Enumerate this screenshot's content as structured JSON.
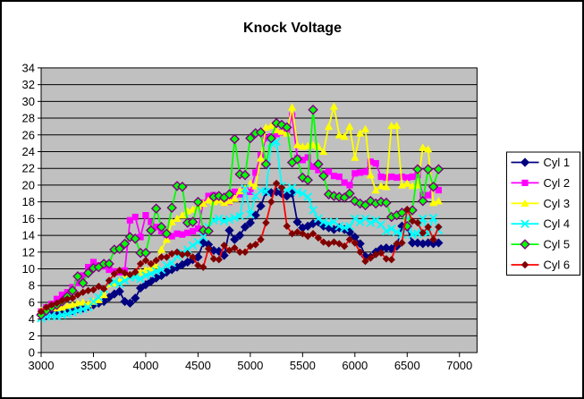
{
  "window": {
    "background": "#FFFFFF",
    "border_color": "#000000"
  },
  "chart_data": {
    "type": "line",
    "title": "Knock Voltage",
    "xlabel": "",
    "ylabel": "",
    "grid": "horizontal",
    "plot_background": "#C0C0C0",
    "gridline_color": "#000000",
    "legend_position": "right",
    "x_axis": {
      "min": 3000,
      "max": 7000,
      "tick_step": 500,
      "tick_labels": [
        "3000",
        "3500",
        "4000",
        "4500",
        "5000",
        "5500",
        "6000",
        "6500",
        "7000"
      ]
    },
    "y_axis": {
      "min": 0,
      "max": 34,
      "tick_step": 2,
      "tick_labels": [
        "0",
        "2",
        "4",
        "6",
        "8",
        "10",
        "12",
        "14",
        "16",
        "18",
        "20",
        "22",
        "24",
        "26",
        "28",
        "30",
        "32",
        "34"
      ]
    },
    "x": [
      3000,
      3050,
      3100,
      3150,
      3200,
      3250,
      3300,
      3350,
      3400,
      3450,
      3500,
      3550,
      3600,
      3650,
      3700,
      3750,
      3800,
      3850,
      3900,
      3950,
      4000,
      4050,
      4100,
      4150,
      4200,
      4250,
      4300,
      4350,
      4400,
      4450,
      4500,
      4550,
      4600,
      4650,
      4700,
      4750,
      4800,
      4850,
      4900,
      4950,
      5000,
      5050,
      5100,
      5150,
      5200,
      5250,
      5300,
      5350,
      5400,
      5450,
      5500,
      5550,
      5600,
      5650,
      5700,
      5750,
      5800,
      5850,
      5900,
      5950,
      6000,
      6050,
      6100,
      6150,
      6200,
      6250,
      6300,
      6350,
      6400,
      6450,
      6500,
      6550,
      6600,
      6650,
      6700,
      6750,
      6800
    ],
    "series": [
      {
        "name": "Cyl 1",
        "line_color": "#000080",
        "marker": "diamond",
        "marker_fill": "#000080",
        "marker_stroke": "#000080",
        "values": [
          4.6,
          4.4,
          4.7,
          4.5,
          4.8,
          4.9,
          5.0,
          5.2,
          5.3,
          5.5,
          5.7,
          5.9,
          6.1,
          6.6,
          7.0,
          7.3,
          6.1,
          5.9,
          6.5,
          7.7,
          8.1,
          8.5,
          8.9,
          9.2,
          9.6,
          9.9,
          10.2,
          10.5,
          10.8,
          11.1,
          11.4,
          13.1,
          12.9,
          12.2,
          12.1,
          11.6,
          14.6,
          13.5,
          14.0,
          15.0,
          15.5,
          16.4,
          17.5,
          19.2,
          19.1,
          19.2,
          19.0,
          18.7,
          19.0,
          15.6,
          14.9,
          15.1,
          15.4,
          15.6,
          15.1,
          14.9,
          14.7,
          14.9,
          14.7,
          14.4,
          13.8,
          13.0,
          11.5,
          11.4,
          12.0,
          12.4,
          12.5,
          12.4,
          12.7,
          15.1,
          15.0,
          13.1,
          13.1,
          13.0,
          13.1,
          13.0,
          13.1
        ]
      },
      {
        "name": "Cyl 2",
        "line_color": "#FF00FF",
        "marker": "square",
        "marker_fill": "#FF00FF",
        "marker_stroke": "#FF00FF",
        "values": [
          4.9,
          5.4,
          5.8,
          6.4,
          6.9,
          7.2,
          7.8,
          8.3,
          9.2,
          10.2,
          10.8,
          10.4,
          10.3,
          9.9,
          9.7,
          9.6,
          9.8,
          15.8,
          16.2,
          13.8,
          16.4,
          15.6,
          15.0,
          14.5,
          14.1,
          13.9,
          14.2,
          14.1,
          14.3,
          14.5,
          14.8,
          17.9,
          18.7,
          18.8,
          18.3,
          17.9,
          18.0,
          19.2,
          18.9,
          19.4,
          19.2,
          21.5,
          23.6,
          25.6,
          25.8,
          26.1,
          26.3,
          26.3,
          28.3,
          23.2,
          23.0,
          23.3,
          22.2,
          21.8,
          21.4,
          21.6,
          21.1,
          21.0,
          20.3,
          20.0,
          21.4,
          21.5,
          21.6,
          22.8,
          22.6,
          21.0,
          20.9,
          21.0,
          20.9,
          21.0,
          20.9,
          21.0,
          21.2,
          18.8,
          18.8,
          19.8,
          19.4
        ]
      },
      {
        "name": "Cyl 3",
        "line_color": "#FFFF00",
        "marker": "triangle",
        "marker_fill": "#FFFF00",
        "marker_stroke": "#FFFF00",
        "values": [
          5.0,
          5.3,
          5.4,
          5.3,
          5.4,
          5.6,
          5.7,
          5.9,
          6.0,
          5.8,
          6.1,
          6.3,
          6.9,
          8.2,
          8.3,
          8.5,
          9.0,
          9.2,
          9.4,
          9.6,
          9.9,
          10.1,
          10.4,
          12.3,
          13.5,
          15.6,
          16.0,
          16.4,
          16.9,
          17.1,
          17.5,
          17.8,
          18.2,
          18.0,
          18.2,
          17.9,
          18.1,
          18.4,
          19.3,
          19.6,
          20.2,
          19.9,
          23.2,
          26.9,
          27.1,
          26.6,
          26.4,
          26.2,
          29.3,
          24.8,
          24.6,
          24.7,
          24.8,
          24.6,
          24.0,
          27.0,
          29.4,
          26.0,
          25.8,
          27.0,
          23.3,
          26.2,
          26.7,
          21.2,
          19.4,
          19.9,
          19.8,
          27.1,
          27.1,
          20.0,
          20.2,
          19.9,
          20.0,
          24.5,
          24.3,
          17.9,
          18.1
        ]
      },
      {
        "name": "Cyl 4",
        "line_color": "#00FFFF",
        "marker": "x",
        "marker_fill": "none",
        "marker_stroke": "#00FFFF",
        "values": [
          4.1,
          4.3,
          4.4,
          4.3,
          4.5,
          4.6,
          4.8,
          5.0,
          5.2,
          5.4,
          6.1,
          6.6,
          7.6,
          8.3,
          8.5,
          8.2,
          8.6,
          9.0,
          9.0,
          8.8,
          9.2,
          9.4,
          9.7,
          9.9,
          10.4,
          10.7,
          11.5,
          11.9,
          12.3,
          12.8,
          13.2,
          13.8,
          15.0,
          15.8,
          16.0,
          15.7,
          15.9,
          16.1,
          16.3,
          19.6,
          16.5,
          18.7,
          19.3,
          19.2,
          25.0,
          25.2,
          19.9,
          19.4,
          19.7,
          19.2,
          19.0,
          18.6,
          17.0,
          16.0,
          15.6,
          15.4,
          15.6,
          15.1,
          14.9,
          15.1,
          16.0,
          15.6,
          16.0,
          15.5,
          15.8,
          15.3,
          14.5,
          14.8,
          14.4,
          14.1,
          16.4,
          14.1,
          14.2,
          16.0,
          14.3,
          16.1,
          14.6
        ]
      },
      {
        "name": "Cyl 5",
        "line_color": "#00FF00",
        "marker": "diamond",
        "marker_fill": "#00FF00",
        "marker_stroke": "#800080",
        "values": [
          4.5,
          5.0,
          5.4,
          5.7,
          6.1,
          6.7,
          7.4,
          9.1,
          8.3,
          9.5,
          10.1,
          10.2,
          10.6,
          10.6,
          12.3,
          12.4,
          13.0,
          13.8,
          13.6,
          11.9,
          11.9,
          14.6,
          17.2,
          15.0,
          14.2,
          17.3,
          19.9,
          19.8,
          15.5,
          15.6,
          18.0,
          14.6,
          14.5,
          18.6,
          18.7,
          18.5,
          18.9,
          25.5,
          21.3,
          21.2,
          25.6,
          26.2,
          26.3,
          22.5,
          25.6,
          27.4,
          27.2,
          26.9,
          22.7,
          23.1,
          20.9,
          20.6,
          29.0,
          22.5,
          21.1,
          18.9,
          18.7,
          18.6,
          18.5,
          19.0,
          18.1,
          17.8,
          17.6,
          18.1,
          17.8,
          18.0,
          17.9,
          16.2,
          16.4,
          16.7,
          15.1,
          17.0,
          21.9,
          18.1,
          21.9,
          19.8,
          21.9
        ]
      },
      {
        "name": "Cyl 6",
        "line_color": "#FF0000",
        "marker": "diamond-small",
        "marker_fill": "#800000",
        "marker_stroke": "#800000",
        "values": [
          4.9,
          5.4,
          5.7,
          5.9,
          6.2,
          6.4,
          6.5,
          6.9,
          7.2,
          7.4,
          7.5,
          7.9,
          7.6,
          8.6,
          9.4,
          9.8,
          9.5,
          9.3,
          9.6,
          10.6,
          11.0,
          10.6,
          11.0,
          11.4,
          11.4,
          11.8,
          12.0,
          11.7,
          11.8,
          11.4,
          10.4,
          10.2,
          12.4,
          11.2,
          11.1,
          12.8,
          12.2,
          12.5,
          12.0,
          12.0,
          12.7,
          12.9,
          13.5,
          15.5,
          18.0,
          20.2,
          19.7,
          15.1,
          14.2,
          14.4,
          14.2,
          13.9,
          14.2,
          13.7,
          13.2,
          13.0,
          13.2,
          13.0,
          12.7,
          13.5,
          13.1,
          12.0,
          10.9,
          11.3,
          11.7,
          11.9,
          11.2,
          11.1,
          13.0,
          13.1,
          17.1,
          15.7,
          15.5,
          14.3,
          15.0,
          13.5,
          15.0
        ]
      }
    ]
  }
}
